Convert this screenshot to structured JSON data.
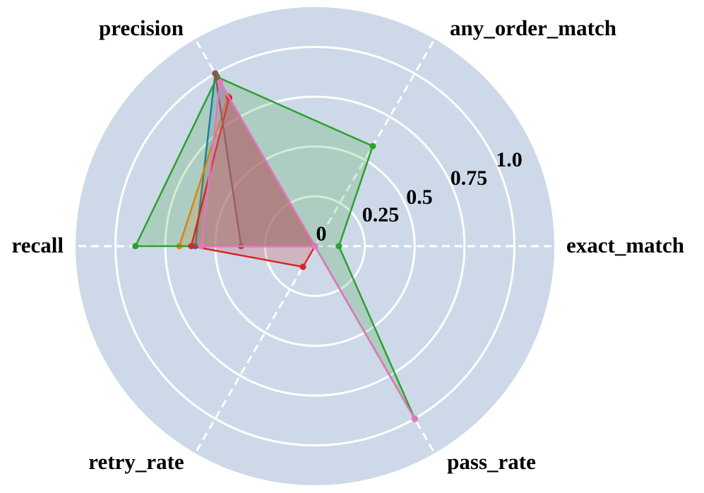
{
  "chart_data": {
    "type": "radar",
    "title": "",
    "axes": [
      "exact_match",
      "any_order_match",
      "precision",
      "recall",
      "retry_rate",
      "pass_rate"
    ],
    "radial_ticks": [
      "0",
      "0.25",
      "0.5",
      "0.75",
      "1.0"
    ],
    "radial_tick_values": [
      0,
      0.25,
      0.5,
      0.75,
      1.0
    ],
    "rlim": [
      0,
      1.2
    ],
    "grid": true,
    "legend": "none",
    "background_color": "#cdd9e8",
    "series": [
      {
        "color": "#1f77b4",
        "values": [
          0.0,
          0.0,
          1.0,
          0.6,
          0.0,
          1.0
        ]
      },
      {
        "color": "#ff7f0e",
        "values": [
          0.0,
          0.0,
          0.87,
          0.68,
          0.0,
          1.0
        ]
      },
      {
        "color": "#2ca02c",
        "values": [
          0.12,
          0.58,
          0.98,
          0.9,
          0.0,
          1.0
        ]
      },
      {
        "color": "#d62728",
        "values": [
          0.0,
          0.0,
          0.86,
          0.62,
          0.12,
          0.0
        ]
      },
      {
        "color": "#8c564b",
        "values": [
          0.0,
          0.0,
          1.0,
          0.37,
          0.0,
          0.0
        ]
      },
      {
        "color": "#e377c2",
        "values": [
          0.0,
          0.0,
          0.95,
          0.57,
          0.0,
          1.0
        ]
      }
    ]
  }
}
